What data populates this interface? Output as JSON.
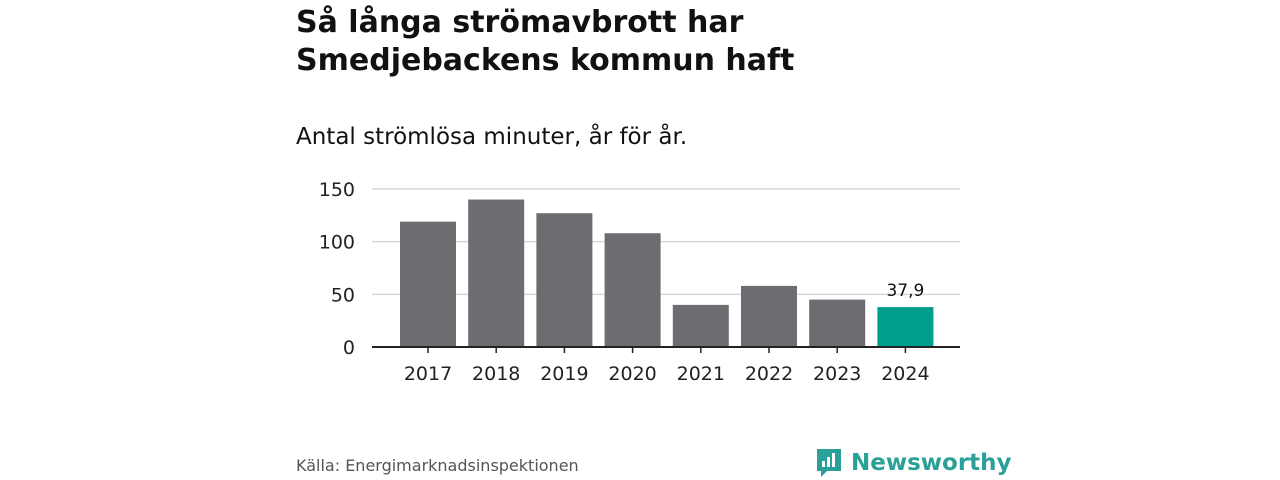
{
  "title": "Så långa strömavbrott har Smedjebackens kommun haft",
  "subtitle": "Antal strömlösa minuter, år för år.",
  "source": "Källa: Energimarknadsinspektionen",
  "brand": {
    "name": "Newsworthy",
    "icon": "newsworthy-logo-icon",
    "color": "#2aa198"
  },
  "colors": {
    "bar": "#6d6c71",
    "highlight": "#009e8e",
    "grid": "#d9d9d9",
    "axis": "#222222"
  },
  "chart_data": {
    "type": "bar",
    "title": "Så långa strömavbrott har Smedjebackens kommun haft",
    "subtitle": "Antal strömlösa minuter, år för år.",
    "xlabel": "",
    "ylabel": "",
    "categories": [
      "2017",
      "2018",
      "2019",
      "2020",
      "2021",
      "2022",
      "2023",
      "2024"
    ],
    "values": [
      119,
      140,
      127,
      108,
      40,
      58,
      45,
      37.9
    ],
    "highlight_index": 7,
    "data_labels": [
      {
        "index": 7,
        "text": "37,9"
      }
    ],
    "ylim": [
      0,
      150
    ],
    "yticks": [
      0,
      50,
      100,
      150
    ],
    "ytick_labels": [
      "0",
      "50",
      "100",
      "150"
    ],
    "grid": true,
    "legend": "none"
  }
}
